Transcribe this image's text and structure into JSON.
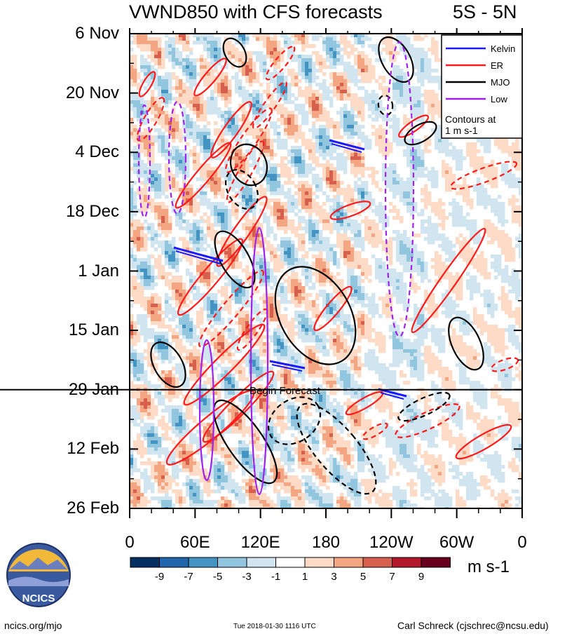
{
  "title_left": "VWND850 with CFS forecasts",
  "title_right": "5S - 5N",
  "chart_data": {
    "type": "heatmap",
    "subtype": "Hovmoller longitude-time diagram",
    "y_ticks": [
      "6 Nov",
      "20 Nov",
      "4 Dec",
      "18 Dec",
      "1 Jan",
      "15 Jan",
      "29 Jan",
      "12 Feb",
      "26 Feb"
    ],
    "x_ticks": [
      "0",
      "60E",
      "120E",
      "180",
      "120W",
      "60W",
      "0"
    ],
    "x_range_deg": [
      0,
      360
    ],
    "y_range_days": [
      0,
      112
    ],
    "forecast_line_day": 84,
    "forecast_label": "Begin Forecast",
    "legend": {
      "placement": "top-right",
      "items": [
        {
          "label": "Kelvin",
          "color": "#1a1aff",
          "style": "solid"
        },
        {
          "label": "ER",
          "color": "#ff1a1a",
          "style": "solid"
        },
        {
          "label": "MJO",
          "color": "#000000",
          "style": "solid"
        },
        {
          "label": "Low",
          "color": "#a020f0",
          "style": "solid"
        }
      ],
      "note_line1": "Contours at",
      "note_line2": "1 m s-1"
    },
    "colorbar": {
      "tick_labels": [
        "-9",
        "-7",
        "-5",
        "-3",
        "-1",
        "1",
        "3",
        "5",
        "7",
        "9"
      ],
      "unit": "m s-1",
      "colors": [
        "#053061",
        "#2166ac",
        "#4393c3",
        "#92c5de",
        "#d1e5f0",
        "#ffffff",
        "#fddbc7",
        "#f4a582",
        "#d6604d",
        "#b2182b",
        "#67001f"
      ]
    },
    "grid": false
  },
  "logo_text": "NCICS",
  "footer": {
    "url": "ncics.org/mjo",
    "timestamp": "Tue 2018-01-30 1116 UTC",
    "author": "Carl Schreck (cjschrec@ncsu.edu)"
  }
}
